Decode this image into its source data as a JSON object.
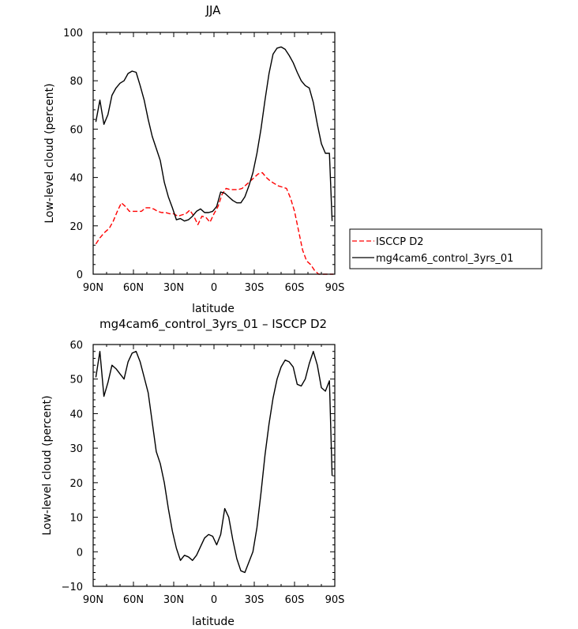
{
  "chart_data": [
    {
      "type": "line",
      "title": "JJA",
      "xlabel": "latitude",
      "ylabel": "Low-level cloud (percent)",
      "xlim": [
        90,
        -90
      ],
      "ylim": [
        0,
        100
      ],
      "xticks": [
        90,
        60,
        30,
        0,
        -30,
        -60,
        -90
      ],
      "xtick_labels": [
        "90N",
        "60N",
        "30N",
        "0",
        "30S",
        "60S",
        "90S"
      ],
      "yticks": [
        0,
        20,
        40,
        60,
        80,
        100
      ],
      "ytick_labels": [
        "0",
        "20",
        "40",
        "60",
        "80",
        "100"
      ],
      "legend": {
        "placement": "right"
      },
      "series": [
        {
          "name": "ISCCP D2",
          "color": "#ff0000",
          "dash": "dashed",
          "x": [
            88,
            85,
            82,
            78,
            75,
            72,
            69,
            66,
            63,
            60,
            57,
            54,
            51,
            48,
            45,
            42,
            39,
            36,
            33,
            30,
            27,
            24,
            21,
            18,
            15,
            12,
            9,
            6,
            3,
            0,
            -3,
            -6,
            -9,
            -12,
            -15,
            -18,
            -21,
            -24,
            -27,
            -30,
            -33,
            -36,
            -39,
            -42,
            -45,
            -48,
            -51,
            -54,
            -57,
            -60,
            -63,
            -66,
            -69,
            -72,
            -75,
            -78,
            -81,
            -84,
            -87,
            -89
          ],
          "y": [
            12.5,
            15,
            17,
            19,
            22,
            26,
            29.5,
            28,
            26,
            26,
            26,
            26,
            27.5,
            27.5,
            27,
            26,
            25.5,
            25.5,
            25,
            25,
            24,
            24.5,
            25,
            26.5,
            24,
            20.5,
            24,
            23.5,
            21.5,
            25,
            28,
            33,
            35.5,
            35,
            35,
            35,
            35.5,
            37,
            38.5,
            40,
            41.5,
            42,
            40,
            38.5,
            37.5,
            36.5,
            36,
            35.5,
            31.5,
            26,
            18,
            10,
            5.5,
            4,
            1.5,
            0,
            0,
            0,
            0,
            0
          ]
        },
        {
          "name": "mg4cam6_control_3yrs_01",
          "color": "#000000",
          "dash": "solid",
          "x": [
            88,
            85,
            82,
            79,
            76,
            73,
            70,
            67,
            64,
            61,
            58,
            55,
            52,
            49,
            46,
            43,
            40,
            37,
            34,
            31,
            28,
            25,
            22,
            19,
            16,
            13,
            10,
            7,
            4,
            1,
            -2,
            -5,
            -8,
            -11,
            -14,
            -17,
            -20,
            -23,
            -26,
            -29,
            -32,
            -35,
            -38,
            -41,
            -44,
            -47,
            -50,
            -53,
            -56,
            -59,
            -62,
            -65,
            -68,
            -71,
            -74,
            -77,
            -80,
            -83,
            -86,
            -88
          ],
          "y": [
            63,
            72,
            62,
            66,
            74,
            77,
            79,
            80,
            83,
            84,
            83.5,
            78,
            72,
            64,
            57,
            52,
            47,
            38,
            32,
            27.5,
            22.5,
            23,
            22,
            22.5,
            24,
            26,
            27,
            25.5,
            25.5,
            26,
            28,
            34,
            33.5,
            32,
            30.5,
            29.5,
            29.5,
            32,
            36.5,
            42,
            50,
            60,
            72,
            83,
            91,
            93.5,
            94,
            93,
            90.5,
            87.5,
            83.5,
            80,
            78,
            77,
            71,
            62,
            54,
            50,
            50,
            22
          ]
        }
      ]
    },
    {
      "type": "line",
      "title": "mg4cam6_control_3yrs_01 – ISCCP D2",
      "xlabel": "latitude",
      "ylabel": "Low-level cloud (percent)",
      "xlim": [
        90,
        -90
      ],
      "ylim": [
        -10,
        60
      ],
      "xticks": [
        90,
        60,
        30,
        0,
        -30,
        -60,
        -90
      ],
      "xtick_labels": [
        "90N",
        "60N",
        "30N",
        "0",
        "30S",
        "60S",
        "90S"
      ],
      "yticks": [
        -10,
        0,
        10,
        20,
        30,
        40,
        50,
        60
      ],
      "ytick_labels": [
        "−10",
        "0",
        "10",
        "20",
        "30",
        "40",
        "50",
        "60"
      ],
      "series": [
        {
          "color": "#000000",
          "dash": "solid",
          "x": [
            88,
            85,
            82,
            79,
            76,
            73,
            70,
            67,
            64,
            61,
            58,
            55,
            52,
            49,
            46,
            43,
            40,
            37,
            34,
            31,
            28,
            25,
            22,
            19,
            16,
            13,
            10,
            7,
            4,
            1,
            -2,
            -5,
            -8,
            -11,
            -14,
            -17,
            -20,
            -23,
            -26,
            -29,
            -32,
            -35,
            -38,
            -41,
            -44,
            -47,
            -50,
            -53,
            -56,
            -59,
            -62,
            -65,
            -68,
            -71,
            -74,
            -77,
            -80,
            -83,
            -86,
            -88
          ],
          "y": [
            50.5,
            58,
            45,
            49,
            54,
            53,
            51.5,
            50,
            55,
            57.5,
            58,
            55,
            50.5,
            46,
            37.5,
            29,
            25.5,
            20,
            12.5,
            6,
            1,
            -2.5,
            -1,
            -1.5,
            -2.5,
            -1,
            1.5,
            4,
            5,
            4.5,
            2,
            5,
            12.5,
            10,
            3.5,
            -2,
            -5.5,
            -6,
            -3,
            0,
            7,
            17,
            28,
            37,
            44.5,
            50,
            53.5,
            55.5,
            55,
            53.5,
            48.5,
            48,
            50,
            54.5,
            58,
            54,
            47.5,
            46.5,
            49.5,
            22
          ]
        }
      ]
    }
  ]
}
